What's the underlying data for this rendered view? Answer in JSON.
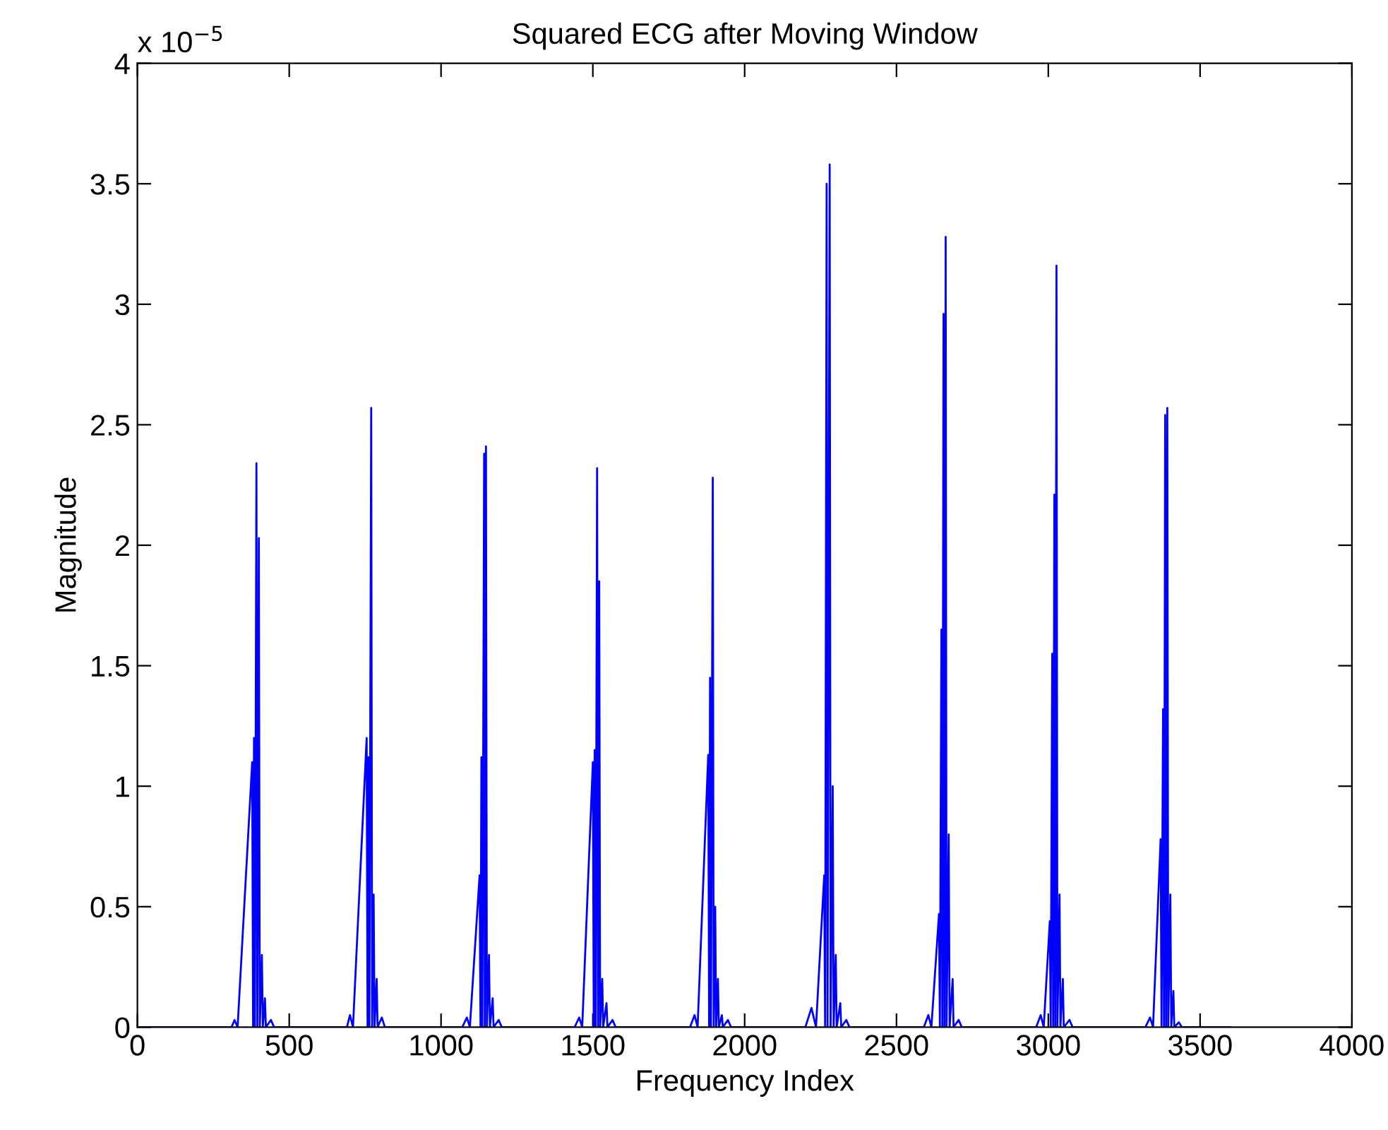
{
  "chart_data": {
    "type": "line",
    "title": "Squared ECG after Moving Window",
    "xlabel": "Frequency Index",
    "ylabel": "Magnitude",
    "annotations": [
      "x 10$^{−5}$"
    ],
    "xlim": [
      0,
      4000
    ],
    "xticks": [
      0,
      500,
      1000,
      1500,
      2000,
      2500,
      3000,
      3500,
      4000
    ],
    "ylim": [
      0,
      4
    ],
    "yticks": [
      0,
      0.5,
      1,
      1.5,
      2,
      2.5,
      3,
      3.5,
      4
    ],
    "grid": false,
    "line_style": "solid",
    "marker": "none",
    "series": [
      {
        "color": "#0000ff",
        "x": [
          0,
          310,
          320,
          330,
          378,
          381,
          384,
          387,
          392,
          395,
          400,
          403,
          410,
          413,
          420,
          423,
          440,
          450,
          690,
          700,
          710,
          755,
          758,
          761,
          764,
          770,
          773,
          778,
          781,
          788,
          791,
          805,
          815,
          1070,
          1085,
          1095,
          1127,
          1130,
          1133,
          1136,
          1142,
          1144,
          1148,
          1151,
          1158,
          1161,
          1170,
          1173,
          1190,
          1200,
          1440,
          1455,
          1465,
          1500,
          1503,
          1506,
          1509,
          1514,
          1517,
          1521,
          1524,
          1531,
          1534,
          1545,
          1548,
          1565,
          1575,
          1820,
          1835,
          1845,
          1880,
          1883,
          1886,
          1889,
          1895,
          1898,
          1903,
          1906,
          1912,
          1915,
          1925,
          1928,
          1945,
          1955,
          2200,
          2220,
          2235,
          2262,
          2265,
          2270,
          2273,
          2280,
          2283,
          2290,
          2293,
          2300,
          2303,
          2315,
          2318,
          2335,
          2345,
          2590,
          2605,
          2615,
          2640,
          2643,
          2648,
          2651,
          2655,
          2658,
          2662,
          2665,
          2672,
          2675,
          2685,
          2688,
          2705,
          2715,
          2960,
          2975,
          2985,
          3005,
          3008,
          3013,
          3016,
          3020,
          3023,
          3027,
          3030,
          3037,
          3040,
          3048,
          3051,
          3070,
          3080,
          3320,
          3335,
          3345,
          3370,
          3373,
          3378,
          3381,
          3385,
          3388,
          3392,
          3395,
          3402,
          3405,
          3412,
          3415,
          3430,
          3440,
          3600
        ],
        "values": [
          0,
          0,
          0.03,
          0,
          1.1,
          0,
          1.2,
          0,
          2.34,
          0,
          2.03,
          0,
          0.3,
          0,
          0.12,
          0,
          0.03,
          0,
          0,
          0.05,
          0,
          1.2,
          0,
          1.12,
          0,
          2.57,
          0,
          0.55,
          0,
          0.2,
          0,
          0.04,
          0,
          0,
          0.04,
          0,
          0.63,
          0,
          1.12,
          0,
          2.38,
          0,
          2.41,
          0,
          0.3,
          0,
          0.12,
          0,
          0.03,
          0,
          0,
          0.04,
          0,
          1.1,
          0,
          1.15,
          0,
          2.32,
          0,
          1.85,
          0,
          0.2,
          0,
          0.1,
          0,
          0.03,
          0,
          0,
          0.05,
          0,
          1.13,
          0,
          1.45,
          0,
          2.28,
          0,
          0.5,
          0,
          0.2,
          0,
          0.05,
          0,
          0.03,
          0,
          0,
          0.08,
          0,
          0.63,
          0,
          3.5,
          0,
          3.58,
          0,
          1.0,
          0,
          0.3,
          0,
          0.1,
          0,
          0.03,
          0,
          0,
          0.05,
          0,
          0.47,
          0,
          1.65,
          0,
          2.96,
          0,
          3.28,
          0,
          0.8,
          0,
          0.2,
          0,
          0.03,
          0,
          0,
          0.05,
          0,
          0.44,
          0,
          1.55,
          0,
          2.21,
          0,
          3.16,
          0,
          0.55,
          0,
          0.2,
          0,
          0.03,
          0,
          0,
          0.04,
          0,
          0.78,
          0,
          1.32,
          0,
          2.54,
          0,
          2.57,
          0,
          0.55,
          0,
          0.15,
          0,
          0.02,
          0,
          0
        ]
      }
    ]
  }
}
